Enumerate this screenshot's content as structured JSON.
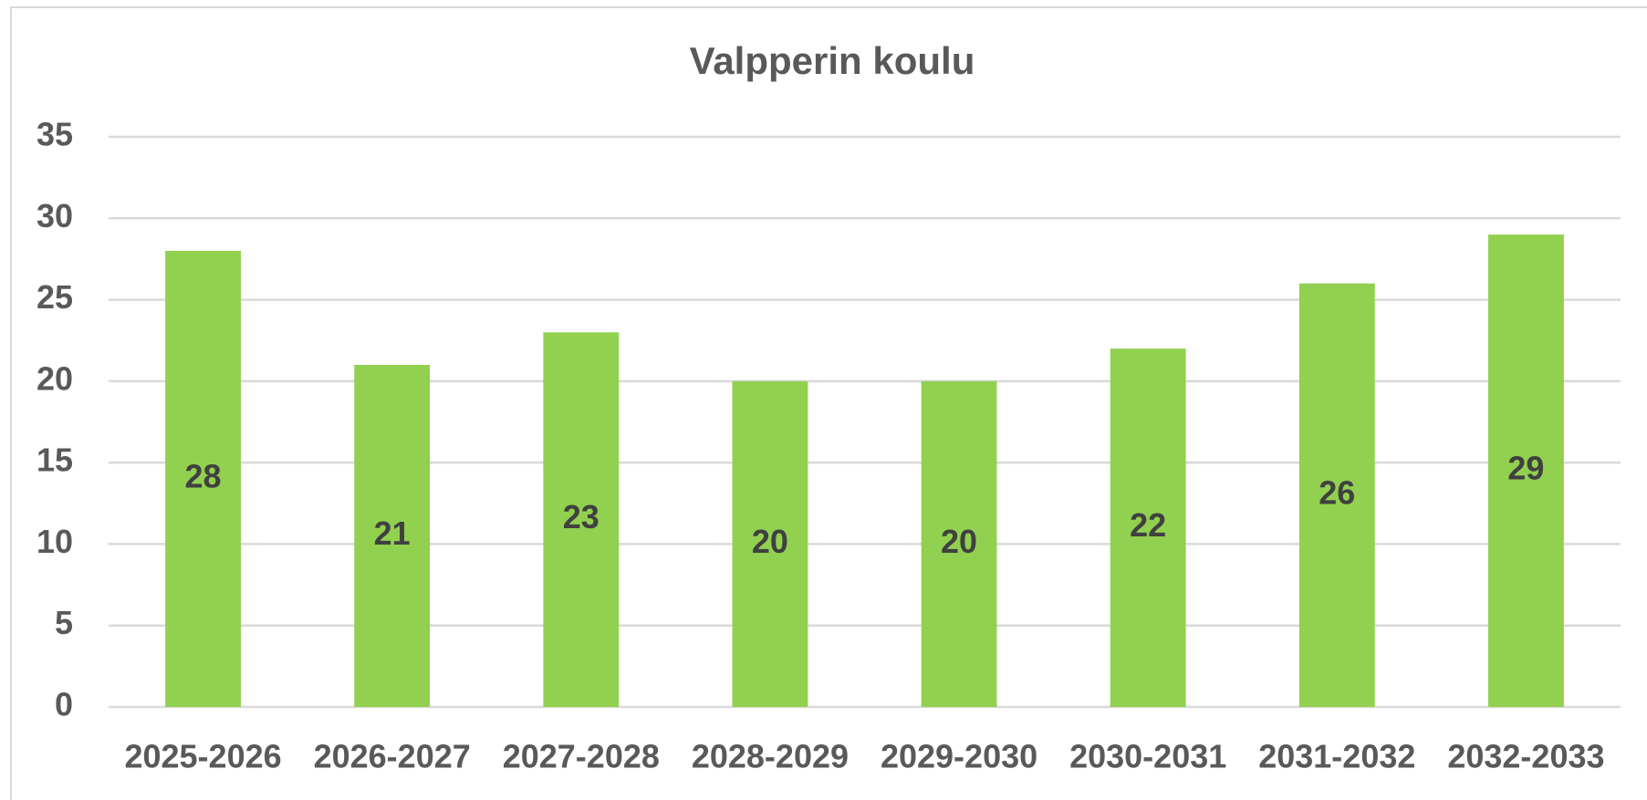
{
  "chart_data": {
    "type": "bar",
    "title": "Valpperin koulu",
    "categories": [
      "2025-2026",
      "2026-2027",
      "2027-2028",
      "2028-2029",
      "2029-2030",
      "2030-2031",
      "2031-2032",
      "2032-2033"
    ],
    "values": [
      28,
      21,
      23,
      20,
      20,
      22,
      26,
      29
    ],
    "color": "#92d050",
    "ylim": [
      0,
      35
    ],
    "yticks": [
      0,
      5,
      10,
      15,
      20,
      25,
      30,
      35
    ],
    "grid": true
  }
}
